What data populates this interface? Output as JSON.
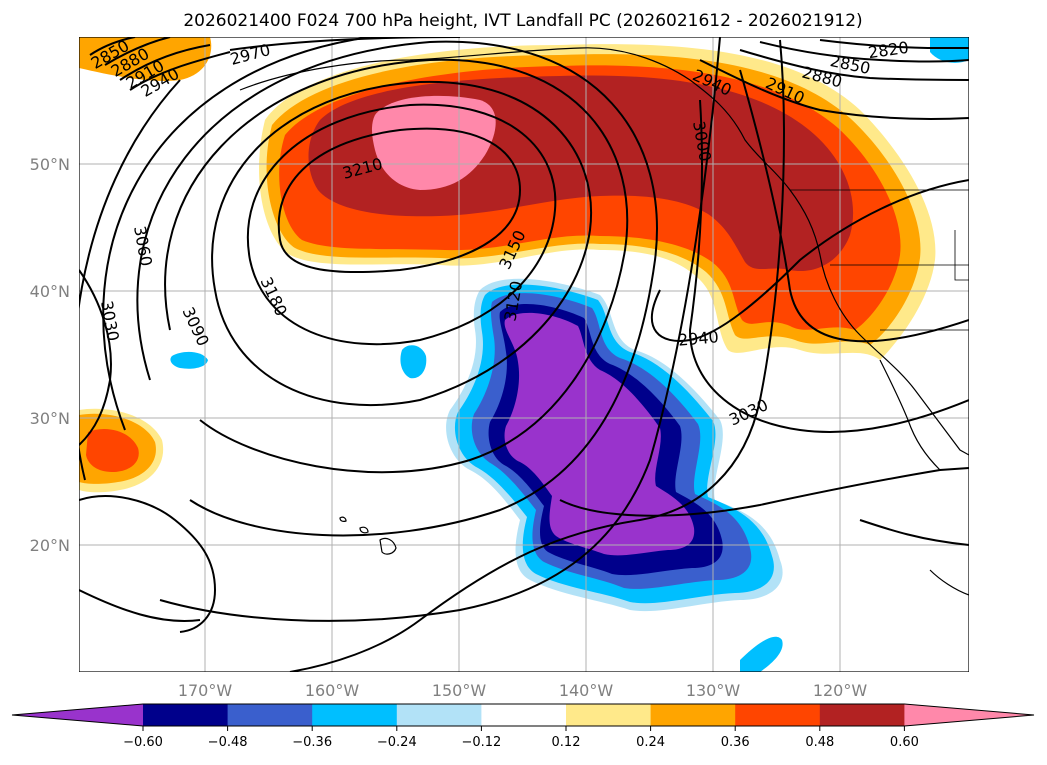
{
  "title": "2026021400 F024 700 hPa height, IVT Landfall PC (2026021612 - 2026021912)",
  "latitude_labels": [
    "50°N",
    "40°N",
    "30°N",
    "20°N"
  ],
  "longitude_labels": [
    "170°W",
    "160°W",
    "150°W",
    "140°W",
    "130°W",
    "120°W"
  ],
  "colorbar": {
    "ticks": [
      "−0.60",
      "−0.48",
      "−0.36",
      "−0.24",
      "−0.12",
      "0.12",
      "0.24",
      "0.36",
      "0.48",
      "0.60"
    ],
    "colors": [
      "#9933cc",
      "#00008b",
      "#3a5fcd",
      "#00bfff",
      "#b2e2f7",
      "#ffffff",
      "#ffe98a",
      "#ffa500",
      "#ff4500",
      "#b22222",
      "#ff88aa"
    ]
  },
  "contour_labels": [
    "2850",
    "2880",
    "2910",
    "2940",
    "2970",
    "2820",
    "2850",
    "2880",
    "2910",
    "2940",
    "3000",
    "3210",
    "3060",
    "3030",
    "3090",
    "3180",
    "3150",
    "3120",
    "2940",
    "3030"
  ],
  "colors": {
    "land_outline": "#000000",
    "grid": "#b0b0b0",
    "contour": "#000000"
  }
}
